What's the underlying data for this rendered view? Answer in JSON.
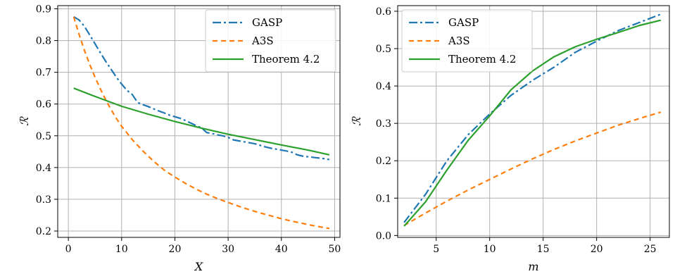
{
  "chart_data": [
    {
      "type": "line",
      "xlabel": "X",
      "ylabel": "ℛ",
      "xlim": [
        -2,
        51
      ],
      "ylim": [
        0.18,
        0.91
      ],
      "xticks": [
        0,
        10,
        20,
        30,
        40,
        50
      ],
      "yticks": [
        0.2,
        0.3,
        0.4,
        0.5,
        0.6,
        0.7,
        0.8,
        0.9
      ],
      "xtick_labels": [
        "0",
        "10",
        "20",
        "30",
        "40",
        "50"
      ],
      "ytick_labels": [
        "0.2",
        "0.3",
        "0.4",
        "0.5",
        "0.6",
        "0.7",
        "0.8",
        "0.9"
      ],
      "grid": true,
      "legend_position": "upper-right",
      "series": [
        {
          "name": "GASP",
          "color": "#1f77b4",
          "dash": "dashdot",
          "x": [
            1,
            2,
            3,
            4,
            5,
            6,
            7,
            8,
            9,
            10,
            11,
            12,
            13,
            14,
            15,
            16,
            17,
            18,
            19,
            20,
            21,
            22,
            23,
            24,
            25,
            26,
            27,
            28,
            29,
            30,
            31,
            32,
            33,
            34,
            35,
            36,
            37,
            38,
            39,
            40,
            41,
            42,
            43,
            44,
            45,
            46,
            47,
            48,
            49
          ],
          "y": [
            0.875,
            0.865,
            0.845,
            0.818,
            0.79,
            0.762,
            0.735,
            0.71,
            0.685,
            0.663,
            0.643,
            0.63,
            0.605,
            0.598,
            0.592,
            0.585,
            0.578,
            0.572,
            0.565,
            0.56,
            0.555,
            0.548,
            0.54,
            0.532,
            0.525,
            0.51,
            0.507,
            0.503,
            0.5,
            0.495,
            0.487,
            0.484,
            0.481,
            0.478,
            0.475,
            0.47,
            0.465,
            0.461,
            0.458,
            0.455,
            0.452,
            0.448,
            0.44,
            0.436,
            0.434,
            0.432,
            0.43,
            0.428,
            0.425
          ]
        },
        {
          "name": "A3S",
          "color": "#ff7f0e",
          "dash": "dashed",
          "x": [
            1,
            2,
            3,
            4,
            5,
            6,
            7,
            8,
            9,
            10,
            12,
            14,
            16,
            18,
            20,
            22,
            24,
            26,
            28,
            30,
            32,
            34,
            36,
            38,
            40,
            42,
            44,
            46,
            48,
            49
          ],
          "y": [
            0.875,
            0.82,
            0.77,
            0.725,
            0.685,
            0.648,
            0.614,
            0.583,
            0.555,
            0.53,
            0.488,
            0.452,
            0.42,
            0.392,
            0.37,
            0.35,
            0.332,
            0.316,
            0.302,
            0.29,
            0.278,
            0.267,
            0.257,
            0.248,
            0.239,
            0.231,
            0.224,
            0.217,
            0.211,
            0.208
          ]
        },
        {
          "name": "Theorem 4.2",
          "color": "#2ca02c",
          "dash": "solid",
          "x": [
            1,
            5,
            10,
            15,
            20,
            25,
            30,
            35,
            40,
            45,
            49
          ],
          "y": [
            0.65,
            0.624,
            0.593,
            0.568,
            0.545,
            0.524,
            0.505,
            0.488,
            0.471,
            0.455,
            0.44
          ]
        }
      ]
    },
    {
      "type": "line",
      "xlabel": "m",
      "ylabel": "ℛ",
      "xlim": [
        1.4,
        26.8
      ],
      "ylim": [
        -0.005,
        0.615
      ],
      "xticks": [
        5,
        10,
        15,
        20,
        25
      ],
      "yticks": [
        0.0,
        0.1,
        0.2,
        0.3,
        0.4,
        0.5,
        0.6
      ],
      "xtick_labels": [
        "5",
        "10",
        "15",
        "20",
        "25"
      ],
      "ytick_labels": [
        "0.0",
        "0.1",
        "0.2",
        "0.3",
        "0.4",
        "0.5",
        "0.6"
      ],
      "grid": true,
      "legend_position": "upper-left",
      "series": [
        {
          "name": "GASP",
          "color": "#1f77b4",
          "dash": "dashdot",
          "x": [
            2,
            4,
            6,
            8,
            10,
            12,
            14,
            16,
            18,
            20,
            22,
            24,
            26
          ],
          "y": [
            0.035,
            0.11,
            0.2,
            0.27,
            0.325,
            0.375,
            0.415,
            0.45,
            0.49,
            0.52,
            0.548,
            0.57,
            0.592
          ]
        },
        {
          "name": "A3S",
          "color": "#ff7f0e",
          "dash": "dashed",
          "x": [
            2,
            4,
            6,
            8,
            10,
            12,
            14,
            16,
            18,
            20,
            22,
            24,
            26
          ],
          "y": [
            0.027,
            0.06,
            0.092,
            0.122,
            0.15,
            0.178,
            0.205,
            0.23,
            0.253,
            0.274,
            0.295,
            0.313,
            0.33
          ]
        },
        {
          "name": "Theorem 4.2",
          "color": "#2ca02c",
          "dash": "solid",
          "x": [
            2,
            4,
            6,
            8,
            10,
            12,
            14,
            16,
            18,
            20,
            22,
            24,
            26
          ],
          "y": [
            0.025,
            0.09,
            0.175,
            0.255,
            0.32,
            0.39,
            0.44,
            0.478,
            0.505,
            0.525,
            0.543,
            0.562,
            0.576
          ]
        }
      ]
    }
  ]
}
